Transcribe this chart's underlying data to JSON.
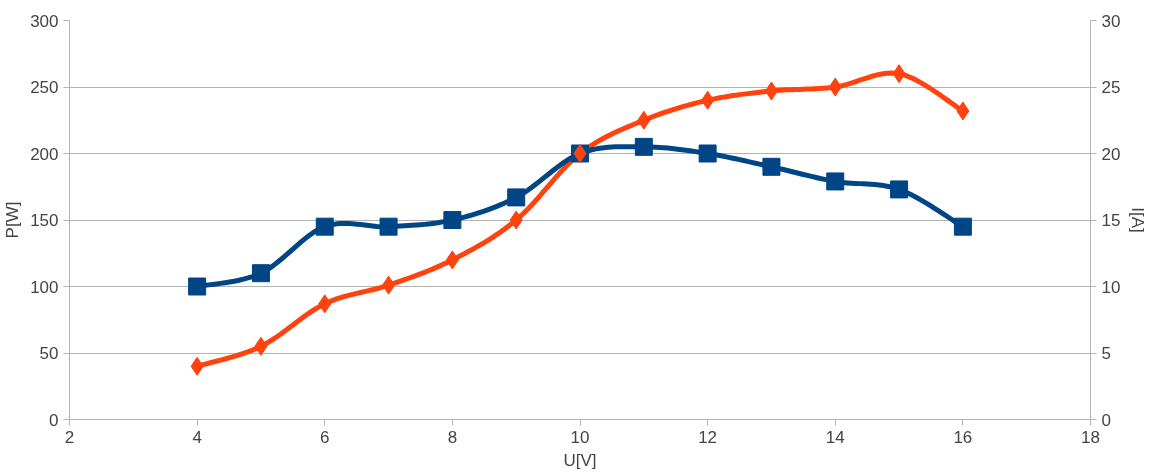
{
  "chart_data": {
    "type": "line",
    "xlabel": "U[V]",
    "ylabel": "P[W]",
    "y2label": "I[A]",
    "x": [
      4,
      5,
      6,
      7,
      8,
      9,
      10,
      11,
      12,
      13,
      14,
      15,
      16
    ],
    "series": [
      {
        "color": "#ff420e",
        "marker": "diamond",
        "values": [
          40,
          55,
          87,
          101,
          120,
          150,
          200,
          225,
          240,
          247,
          250,
          260,
          232
        ]
      },
      {
        "color": "#004586",
        "marker": "square",
        "axis": "y2",
        "values": [
          10,
          11,
          14.5,
          14.5,
          15,
          16.7,
          20,
          20.5,
          20,
          19,
          17.9,
          17.3,
          14.5
        ]
      }
    ],
    "xlim": [
      2,
      18
    ],
    "xticks": [
      2,
      4,
      6,
      8,
      10,
      12,
      14,
      16,
      18
    ],
    "ylim": [
      0,
      300
    ],
    "yticks": [
      0,
      50,
      100,
      150,
      200,
      250,
      300
    ],
    "y2lim": [
      0,
      30
    ],
    "y2ticks": [
      0,
      5,
      10,
      15,
      20,
      25,
      30
    ],
    "grid": "y"
  }
}
